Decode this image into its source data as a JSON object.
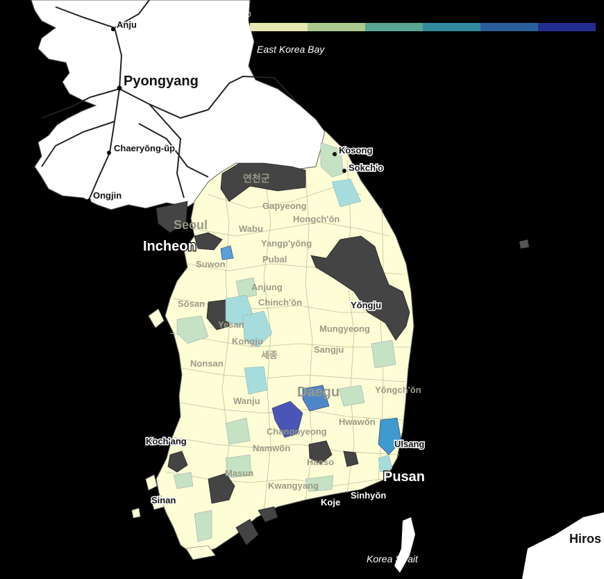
{
  "legend": {
    "zero_label": "0",
    "colors": [
      "#e6e6b2",
      "#a9c98f",
      "#5aa594",
      "#2f8b9d",
      "#2a5f9b",
      "#232c8f"
    ]
  },
  "seas": {
    "east": "East Korea Bay",
    "strait": "Korea Strait"
  },
  "cities_north": {
    "anju": "Anju",
    "pyongyang": "Pyongyang",
    "chaeryong": "Chaeryŏng-ŭp",
    "ongjin": "Ongjin",
    "kosong": "Kosong",
    "sokcho": "Sokch'o",
    "yeoncheon": "연천군"
  },
  "cities_south": {
    "seoul": "Seoul",
    "incheon": "Incheon",
    "suwon": "Suwon",
    "gapyeong": "Gapyeong",
    "hongchon": "Hongch'ŏn",
    "wabu": "Wabu",
    "yangpyeong": "Yangp'yŏng",
    "pubal": "Pubal",
    "anjung": "Anjung",
    "chinchon": "Chinch'ŏn",
    "sosan": "Sŏsan",
    "yesan": "Yesan",
    "kongju": "Kongju",
    "nonsan": "Nonsan",
    "sejong": "세종",
    "yongju": "Yŏngju",
    "mungyeong": "Mungyeong",
    "sangju": "Sangju",
    "daegu": "Daegu",
    "yongchon": "Yŏngch'ŏn",
    "wanju": "Wanju",
    "hwawon": "Hwawŏn",
    "changnyeong": "Changnyeong",
    "namwon": "Namwŏn",
    "kochang": "Koch'ang",
    "ulsan": "Ulsang",
    "haeso": "Haeso",
    "pusan": "Pusan",
    "masun": "Masun",
    "sinan": "Sinan",
    "kwangyang": "Kwangyang",
    "koje": "Koje",
    "sinhyon": "Sinhyŏn",
    "hiroshima": "Hiros"
  }
}
